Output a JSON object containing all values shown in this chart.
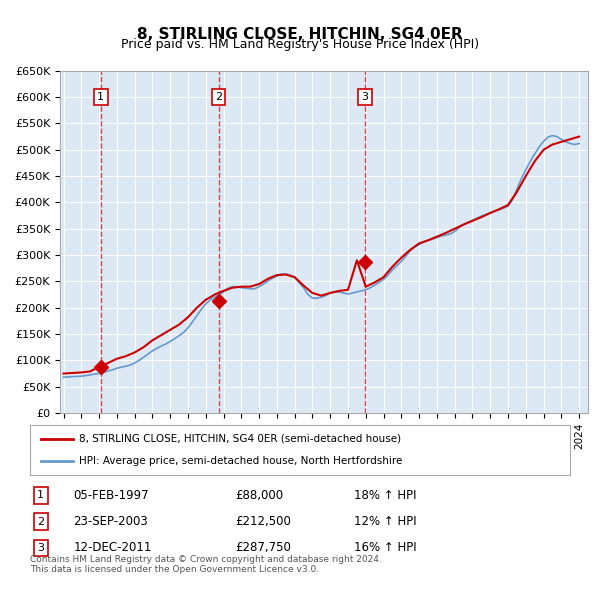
{
  "title": "8, STIRLING CLOSE, HITCHIN, SG4 0ER",
  "subtitle": "Price paid vs. HM Land Registry's House Price Index (HPI)",
  "ylabel": "",
  "ylim": [
    0,
    650000
  ],
  "yticks": [
    0,
    50000,
    100000,
    150000,
    200000,
    250000,
    300000,
    350000,
    400000,
    450000,
    500000,
    550000,
    600000,
    650000
  ],
  "ytick_labels": [
    "£0",
    "£50K",
    "£100K",
    "£150K",
    "£200K",
    "£250K",
    "£300K",
    "£350K",
    "£400K",
    "£450K",
    "£500K",
    "£550K",
    "£600K",
    "£650K"
  ],
  "background_color": "#dce9f5",
  "plot_bg_color": "#dce9f5",
  "grid_color": "#ffffff",
  "transactions": [
    {
      "date": "05-FEB-1997",
      "price": 88000,
      "label": "1",
      "pct": "18%",
      "direction": "↑"
    },
    {
      "date": "23-SEP-2003",
      "price": 212500,
      "label": "2",
      "pct": "12%",
      "direction": "↑"
    },
    {
      "date": "12-DEC-2011",
      "price": 287750,
      "label": "3",
      "pct": "16%",
      "direction": "↑"
    }
  ],
  "legend_line1": "8, STIRLING CLOSE, HITCHIN, SG4 0ER (semi-detached house)",
  "legend_line2": "HPI: Average price, semi-detached house, North Hertfordshire",
  "footer_line1": "Contains HM Land Registry data © Crown copyright and database right 2024.",
  "footer_line2": "This data is licensed under the Open Government Licence v3.0.",
  "red_color": "#cc0000",
  "blue_color": "#6699cc",
  "hpi_years": [
    1995.0,
    1995.25,
    1995.5,
    1995.75,
    1996.0,
    1996.25,
    1996.5,
    1996.75,
    1997.0,
    1997.25,
    1997.5,
    1997.75,
    1998.0,
    1998.25,
    1998.5,
    1998.75,
    1999.0,
    1999.25,
    1999.5,
    1999.75,
    2000.0,
    2000.25,
    2000.5,
    2000.75,
    2001.0,
    2001.25,
    2001.5,
    2001.75,
    2002.0,
    2002.25,
    2002.5,
    2002.75,
    2003.0,
    2003.25,
    2003.5,
    2003.75,
    2004.0,
    2004.25,
    2004.5,
    2004.75,
    2005.0,
    2005.25,
    2005.5,
    2005.75,
    2006.0,
    2006.25,
    2006.5,
    2006.75,
    2007.0,
    2007.25,
    2007.5,
    2007.75,
    2008.0,
    2008.25,
    2008.5,
    2008.75,
    2009.0,
    2009.25,
    2009.5,
    2009.75,
    2010.0,
    2010.25,
    2010.5,
    2010.75,
    2011.0,
    2011.25,
    2011.5,
    2011.75,
    2012.0,
    2012.25,
    2012.5,
    2012.75,
    2013.0,
    2013.25,
    2013.5,
    2013.75,
    2014.0,
    2014.25,
    2014.5,
    2014.75,
    2015.0,
    2015.25,
    2015.5,
    2015.75,
    2016.0,
    2016.25,
    2016.5,
    2016.75,
    2017.0,
    2017.25,
    2017.5,
    2017.75,
    2018.0,
    2018.25,
    2018.5,
    2018.75,
    2019.0,
    2019.25,
    2019.5,
    2019.75,
    2020.0,
    2020.25,
    2020.5,
    2020.75,
    2021.0,
    2021.25,
    2021.5,
    2021.75,
    2022.0,
    2022.25,
    2022.5,
    2022.75,
    2023.0,
    2023.25,
    2023.5,
    2023.75,
    2024.0
  ],
  "hpi_values": [
    68000,
    68500,
    69000,
    69500,
    70000,
    71000,
    72500,
    74000,
    75000,
    77000,
    80000,
    82000,
    85000,
    87000,
    89000,
    91000,
    95000,
    100000,
    106000,
    112000,
    118000,
    123000,
    127000,
    131000,
    136000,
    141000,
    147000,
    153000,
    162000,
    173000,
    185000,
    197000,
    207000,
    215000,
    220000,
    225000,
    230000,
    237000,
    240000,
    240000,
    238000,
    237000,
    236000,
    236000,
    240000,
    245000,
    251000,
    256000,
    260000,
    264000,
    264000,
    262000,
    258000,
    248000,
    238000,
    225000,
    218000,
    218000,
    220000,
    223000,
    228000,
    230000,
    230000,
    228000,
    226000,
    228000,
    230000,
    232000,
    234000,
    238000,
    243000,
    248000,
    254000,
    262000,
    272000,
    280000,
    288000,
    298000,
    308000,
    315000,
    320000,
    325000,
    328000,
    330000,
    333000,
    336000,
    338000,
    340000,
    345000,
    352000,
    358000,
    362000,
    366000,
    370000,
    374000,
    377000,
    380000,
    383000,
    386000,
    389000,
    393000,
    405000,
    425000,
    445000,
    462000,
    478000,
    492000,
    505000,
    516000,
    524000,
    527000,
    525000,
    520000,
    515000,
    512000,
    510000,
    512000
  ],
  "price_years": [
    1995.0,
    1995.5,
    1996.0,
    1996.5,
    1997.0,
    1997.5,
    1998.0,
    1998.5,
    1999.0,
    1999.5,
    2000.0,
    2000.5,
    2001.0,
    2001.5,
    2002.0,
    2002.5,
    2003.0,
    2003.5,
    2004.0,
    2004.5,
    2005.0,
    2005.5,
    2006.0,
    2006.5,
    2007.0,
    2007.5,
    2008.0,
    2008.5,
    2009.0,
    2009.5,
    2010.0,
    2010.5,
    2011.0,
    2011.5,
    2012.0,
    2012.5,
    2013.0,
    2013.5,
    2014.0,
    2014.5,
    2015.0,
    2015.5,
    2016.0,
    2016.5,
    2017.0,
    2017.5,
    2018.0,
    2018.5,
    2019.0,
    2019.5,
    2020.0,
    2020.5,
    2021.0,
    2021.5,
    2022.0,
    2022.5,
    2023.0,
    2023.5,
    2024.0
  ],
  "price_values": [
    75000,
    76000,
    77000,
    79000,
    88000,
    95000,
    103000,
    108000,
    115000,
    125000,
    138000,
    148000,
    158000,
    168000,
    182000,
    200000,
    215000,
    225000,
    232000,
    238000,
    240000,
    240000,
    245000,
    255000,
    262000,
    263000,
    258000,
    242000,
    228000,
    223000,
    228000,
    232000,
    234000,
    290000,
    240000,
    248000,
    258000,
    278000,
    295000,
    310000,
    322000,
    328000,
    335000,
    342000,
    350000,
    358000,
    365000,
    372000,
    380000,
    387000,
    395000,
    420000,
    450000,
    478000,
    500000,
    510000,
    515000,
    520000,
    525000
  ],
  "xmin": 1994.8,
  "xmax": 2024.5,
  "xtick_years": [
    1995,
    1996,
    1997,
    1998,
    1999,
    2000,
    2001,
    2002,
    2003,
    2004,
    2005,
    2006,
    2007,
    2008,
    2009,
    2010,
    2011,
    2012,
    2013,
    2014,
    2015,
    2016,
    2017,
    2018,
    2019,
    2020,
    2021,
    2022,
    2023,
    2024
  ]
}
